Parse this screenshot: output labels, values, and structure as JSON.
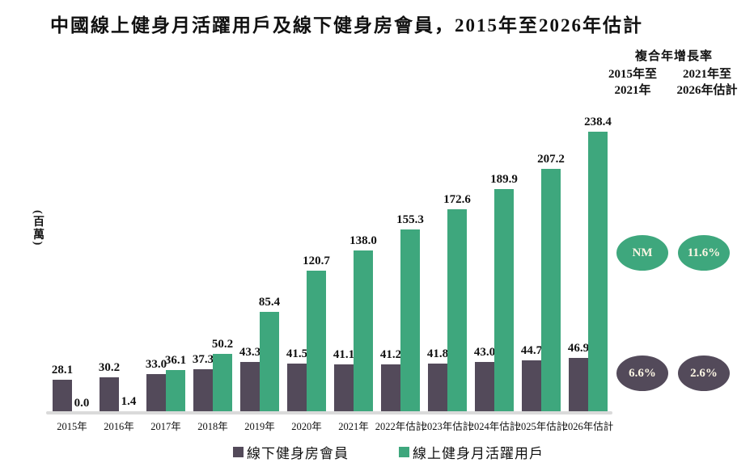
{
  "title": "中國線上健身月活躍用戶及線下健身房會員，2015年至2026年估計",
  "ylabel": "(百萬)",
  "colors": {
    "online_green": "#3EA77D",
    "offline_dark": "#534A5A",
    "axis_line": "#DADADA",
    "oval_text": "#FCF6E4"
  },
  "cagr": {
    "header": "複合年增長率",
    "col1": {
      "line1": "2015年至",
      "line2": "2021年"
    },
    "col2": {
      "line1": "2021年至",
      "line2": "2026年估計"
    },
    "online": {
      "col1": "NM",
      "col2": "11.6%"
    },
    "offline": {
      "col1": "6.6%",
      "col2": "2.6%"
    }
  },
  "chart_data": {
    "type": "bar",
    "categories": [
      "2015年",
      "2016年",
      "2017年",
      "2018年",
      "2019年",
      "2020年",
      "2021年",
      "2022年估計",
      "2023年估計",
      "2024年估計",
      "2025年估計",
      "2026年估計"
    ],
    "series": [
      {
        "name": "線下健身房會員",
        "color": "#534A5A",
        "values": [
          28.1,
          30.2,
          33.0,
          37.3,
          43.3,
          41.5,
          41.1,
          41.2,
          41.8,
          43.0,
          44.7,
          46.9
        ]
      },
      {
        "name": "線上健身月活躍用戶",
        "color": "#3EA77D",
        "values": [
          0.0,
          1.4,
          36.1,
          50.2,
          85.4,
          120.7,
          138.0,
          155.3,
          172.6,
          189.9,
          207.2,
          238.4
        ]
      }
    ],
    "title": "中國線上健身月活躍用戶及線下健身房會員，2015年至2026年估計",
    "xlabel": "",
    "ylabel": "(百萬)",
    "unit": "百萬",
    "ylim": [
      0,
      250
    ],
    "grid": false,
    "value_labels": "one-decimal",
    "legend_position": "bottom"
  }
}
